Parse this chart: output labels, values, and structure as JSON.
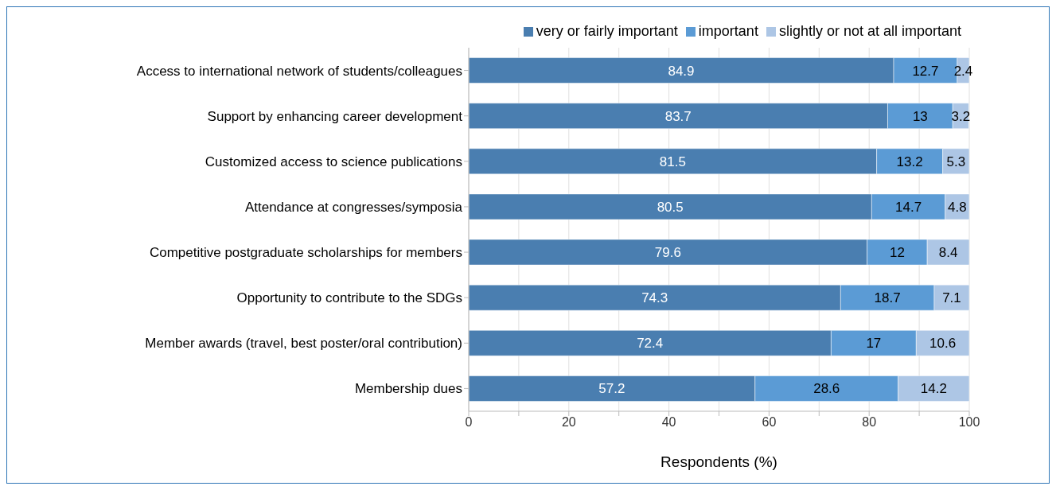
{
  "chart_data": {
    "type": "bar",
    "orientation": "horizontal",
    "stacked": true,
    "xlabel": "Respondents (%)",
    "categories": [
      "Access to international network of students/colleagues",
      "Support by enhancing career development",
      "Customized access to science publications",
      "Attendance at congresses/symposia",
      "Competitive postgraduate scholarships for members",
      "Opportunity to contribute to the SDGs",
      "Member awards (travel, best poster/oral contribution)",
      "Membership dues"
    ],
    "series": [
      {
        "name": "very or fairly important",
        "color": "#4a7eb0",
        "values": [
          84.9,
          83.7,
          81.5,
          80.5,
          79.6,
          74.3,
          72.4,
          57.2
        ]
      },
      {
        "name": "important",
        "color": "#5b9bd5",
        "values": [
          12.7,
          13,
          13.2,
          14.7,
          12,
          18.7,
          17,
          28.6
        ]
      },
      {
        "name": "slightly or not at all important",
        "color": "#adc6e5",
        "values": [
          2.4,
          3.2,
          5.3,
          4.8,
          8.4,
          7.1,
          10.6,
          14.2
        ]
      }
    ],
    "xlim": [
      0,
      100
    ],
    "xticks": [
      0,
      {
        "value": 10,
        "label": null
      },
      20,
      {
        "value": 30,
        "label": null
      },
      40,
      {
        "value": 50,
        "label": null
      },
      60,
      {
        "value": 70,
        "label": null
      },
      80,
      {
        "value": 90,
        "label": null
      },
      100
    ],
    "grid": "x",
    "legend": "top right",
    "data_labels": true
  }
}
